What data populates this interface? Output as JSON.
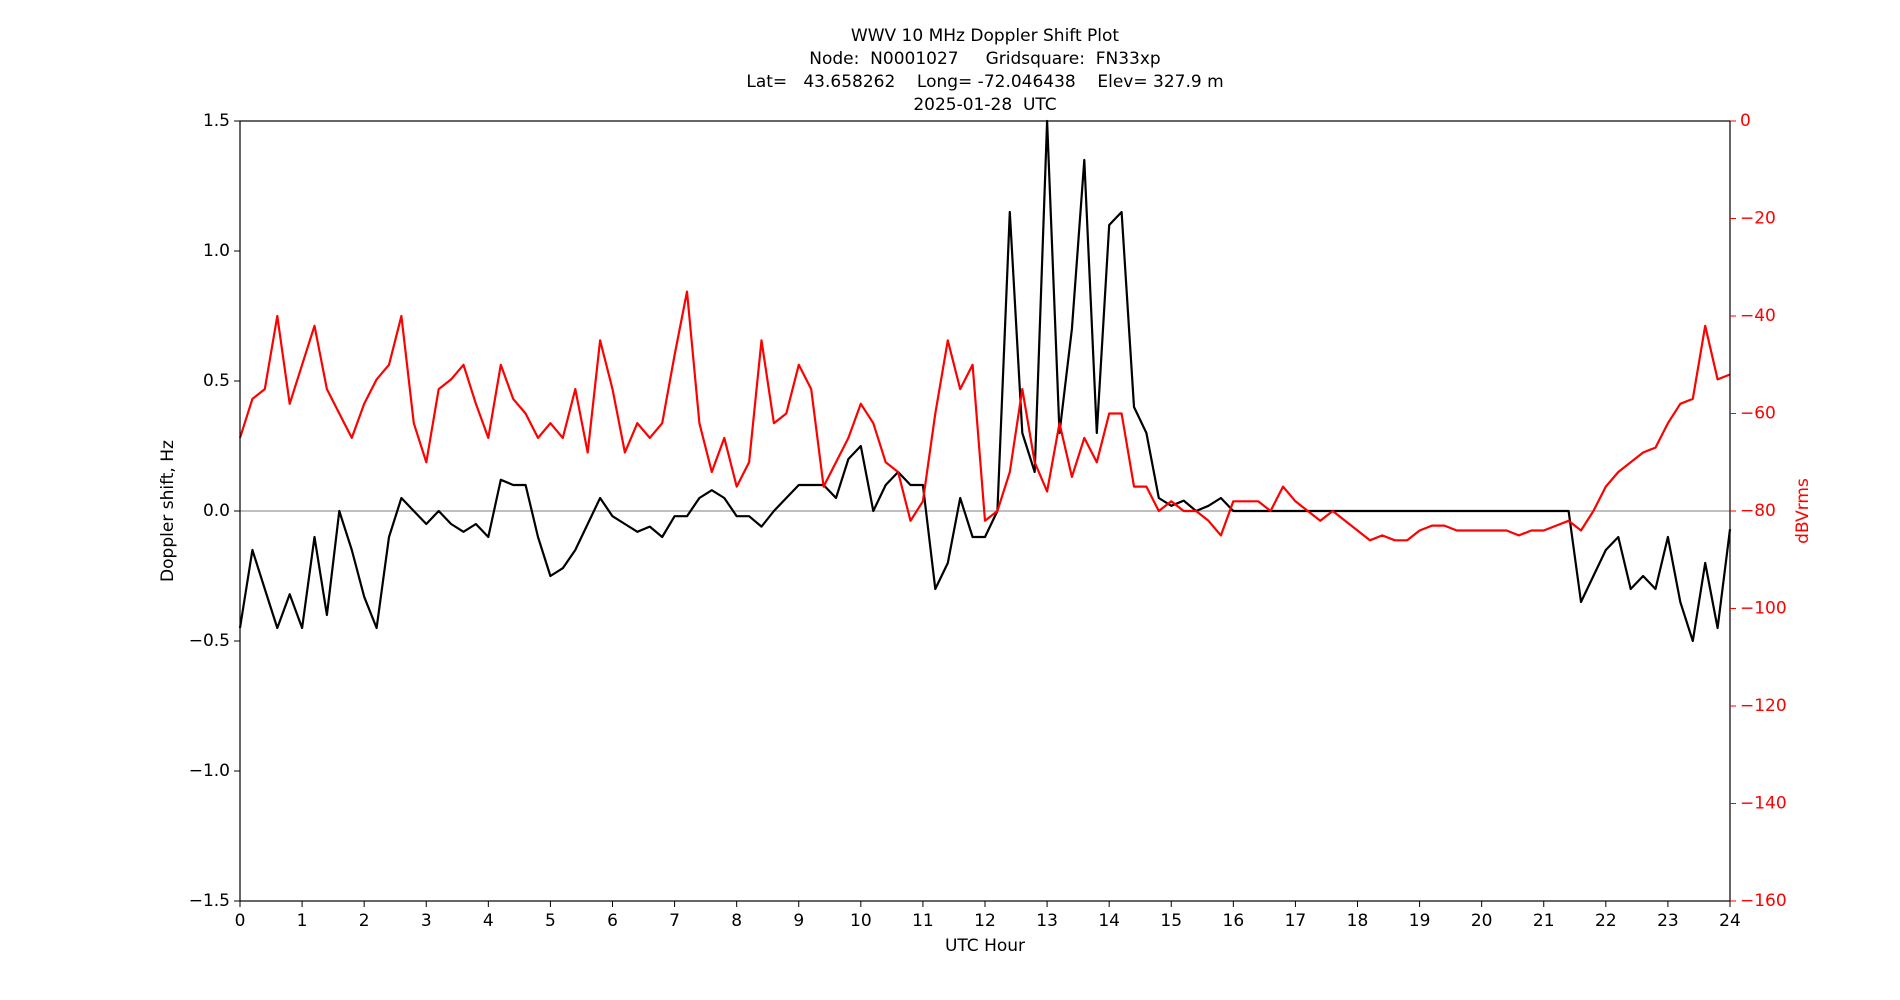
{
  "chart_data": {
    "type": "line",
    "title": [
      "WWV 10 MHz Doppler Shift Plot",
      "Node:  N0001027     Gridsquare:  FN33xp",
      "Lat=   43.658262    Long= -72.046438    Elev= 327.9 m",
      "2025-01-28  UTC"
    ],
    "xlabel": "UTC Hour",
    "ylabel": "Doppler shift, Hz",
    "y2label": "dBVrms",
    "y2color": "#ff0000",
    "xlim": [
      0,
      24
    ],
    "xticks": [
      0,
      1,
      2,
      3,
      4,
      5,
      6,
      7,
      8,
      9,
      10,
      11,
      12,
      13,
      14,
      15,
      16,
      17,
      18,
      19,
      20,
      21,
      22,
      23,
      24
    ],
    "ylim": [
      -1.5,
      1.5
    ],
    "yticks": [
      {
        "value": -1.5,
        "label": "−1.5"
      },
      {
        "value": -1.0,
        "label": "−1.0"
      },
      {
        "value": -0.5,
        "label": "−0.5"
      },
      {
        "value": 0,
        "label": "0.0"
      },
      0.5,
      {
        "value": 1.0,
        "label": "1.0"
      },
      1.5
    ],
    "y2lim": [
      -160,
      0
    ],
    "y2ticks": [
      {
        "value": -160,
        "label": "−160"
      },
      {
        "value": -140,
        "label": "−140"
      },
      {
        "value": -120,
        "label": "−120"
      },
      {
        "value": -100,
        "label": "−100"
      },
      {
        "value": -80,
        "label": "−80"
      },
      {
        "value": -60,
        "label": "−60"
      },
      {
        "value": -40,
        "label": "−40"
      },
      {
        "value": -20,
        "label": "−20"
      },
      0
    ],
    "hline": 0,
    "hline_color": "#999999",
    "x": [
      0,
      0.2,
      0.4,
      0.6,
      0.8,
      1,
      1.2,
      1.4,
      1.6,
      1.8,
      2,
      2.2,
      2.4,
      2.6,
      2.8,
      3,
      3.2,
      3.4,
      3.6,
      3.8,
      4,
      4.2,
      4.4,
      4.6,
      4.8,
      5,
      5.2,
      5.4,
      5.6,
      5.8,
      6,
      6.2,
      6.4,
      6.6,
      6.8,
      7,
      7.2,
      7.4,
      7.6,
      7.8,
      8,
      8.2,
      8.4,
      8.6,
      8.8,
      9,
      9.2,
      9.4,
      9.6,
      9.8,
      10,
      10.2,
      10.4,
      10.6,
      10.8,
      11,
      11.2,
      11.4,
      11.6,
      11.8,
      12,
      12.2,
      12.4,
      12.6,
      12.8,
      13,
      13.2,
      13.4,
      13.6,
      13.8,
      14,
      14.2,
      14.4,
      14.6,
      14.8,
      15,
      15.2,
      15.4,
      15.6,
      15.8,
      16,
      16.2,
      16.4,
      16.6,
      16.8,
      17,
      17.2,
      17.4,
      17.6,
      17.8,
      18,
      18.2,
      18.4,
      18.6,
      18.8,
      19,
      19.2,
      19.4,
      19.6,
      19.8,
      20,
      20.2,
      20.4,
      20.6,
      20.8,
      21,
      21.2,
      21.4,
      21.6,
      21.8,
      22,
      22.2,
      22.4,
      22.6,
      22.8,
      23,
      23.2,
      23.4,
      23.6,
      23.8,
      24
    ],
    "series": [
      {
        "color": "#000000",
        "axis": "y",
        "values": [
          -0.45,
          -0.15,
          -0.3,
          -0.45,
          -0.32,
          -0.45,
          -0.1,
          -0.4,
          0.0,
          -0.15,
          -0.33,
          -0.45,
          -0.1,
          0.05,
          0.0,
          -0.05,
          0.0,
          -0.05,
          -0.08,
          -0.05,
          -0.1,
          0.12,
          0.1,
          0.1,
          -0.1,
          -0.25,
          -0.22,
          -0.15,
          -0.05,
          0.05,
          -0.02,
          -0.05,
          -0.08,
          -0.06,
          -0.1,
          -0.02,
          -0.02,
          0.05,
          0.08,
          0.05,
          -0.02,
          -0.02,
          -0.06,
          0.0,
          0.05,
          0.1,
          0.1,
          0.1,
          0.05,
          0.2,
          0.25,
          0.0,
          0.1,
          0.15,
          0.1,
          0.1,
          -0.3,
          -0.2,
          0.05,
          -0.1,
          -0.1,
          0.0,
          1.15,
          0.3,
          0.15,
          1.5,
          0.3,
          0.7,
          1.35,
          0.3,
          1.1,
          1.15,
          0.4,
          0.3,
          0.05,
          0.02,
          0.04,
          0.0,
          0.02,
          0.05,
          0.0,
          0.0,
          0.0,
          0.0,
          0.0,
          0.0,
          0.0,
          0.0,
          0.0,
          0.0,
          0.0,
          0.0,
          0.0,
          0.0,
          0.0,
          0.0,
          0.0,
          0.0,
          0.0,
          0.0,
          0.0,
          0.0,
          0.0,
          0.0,
          0.0,
          0.0,
          0.0,
          0.0,
          -0.35,
          -0.25,
          -0.15,
          -0.1,
          -0.3,
          -0.25,
          -0.3,
          -0.1,
          -0.35,
          -0.5,
          -0.2,
          -0.45,
          -0.07
        ]
      },
      {
        "color": "#ff0000",
        "axis": "y2",
        "values": [
          -65,
          -57,
          -55,
          -40,
          -58,
          -50,
          -42,
          -55,
          -60,
          -65,
          -58,
          -53,
          -50,
          -40,
          -62,
          -70,
          -55,
          -53,
          -50,
          -58,
          -65,
          -50,
          -57,
          -60,
          -65,
          -62,
          -65,
          -55,
          -68,
          -45,
          -55,
          -68,
          -62,
          -65,
          -62,
          -48,
          -35,
          -62,
          -72,
          -65,
          -75,
          -70,
          -45,
          -62,
          -60,
          -50,
          -55,
          -75,
          -70,
          -65,
          -58,
          -62,
          -70,
          -72,
          -82,
          -78,
          -60,
          -45,
          -55,
          -50,
          -82,
          -80,
          -72,
          -55,
          -70,
          -76,
          -62,
          -73,
          -65,
          -70,
          -60,
          -60,
          -75,
          -75,
          -80,
          -78,
          -80,
          -80,
          -82,
          -85,
          -78,
          -78,
          -78,
          -80,
          -75,
          -78,
          -80,
          -82,
          -80,
          -82,
          -84,
          -86,
          -85,
          -86,
          -86,
          -84,
          -83,
          -83,
          -84,
          -84,
          -84,
          -84,
          -84,
          -85,
          -84,
          -84,
          -83,
          -82,
          -84,
          -80,
          -75,
          -72,
          -70,
          -68,
          -67,
          -62,
          -58,
          -57,
          -42,
          -53,
          -52
        ]
      }
    ]
  }
}
